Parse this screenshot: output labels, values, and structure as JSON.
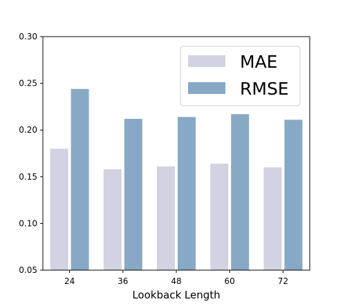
{
  "chart_data": {
    "type": "bar",
    "categories": [
      "24",
      "36",
      "48",
      "60",
      "72"
    ],
    "series": [
      {
        "name": "MAE",
        "values": [
          0.18,
          0.158,
          0.161,
          0.164,
          0.16
        ],
        "color": "#d1d3e2"
      },
      {
        "name": "RMSE",
        "values": [
          0.244,
          0.212,
          0.214,
          0.217,
          0.211
        ],
        "color": "#88a9c6"
      }
    ],
    "title": "",
    "xlabel": "Lookback Length",
    "ylabel": "",
    "ylim": [
      0.05,
      0.3
    ],
    "yticks": [
      "0.05",
      "0.10",
      "0.15",
      "0.20",
      "0.25",
      "0.30"
    ],
    "grid": false,
    "legend_position": "top-right"
  }
}
